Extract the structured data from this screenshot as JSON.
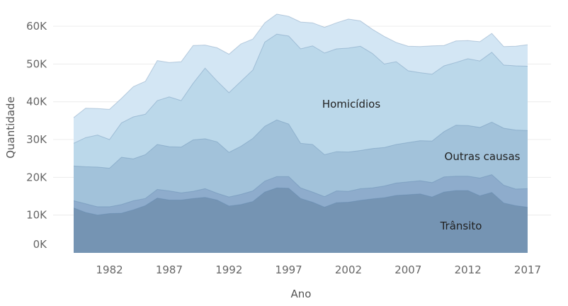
{
  "chart_data": {
    "type": "area",
    "stacked": false,
    "xlabel": "Ano",
    "ylabel": "Quantidade",
    "x_ticks": [
      "1982",
      "1987",
      "1992",
      "1997",
      "2002",
      "2007",
      "2012",
      "2017"
    ],
    "y_ticks": [
      "0K",
      "10K",
      "20K",
      "30K",
      "40K",
      "50K",
      "60K"
    ],
    "xlim": [
      1979,
      2017
    ],
    "ylim": [
      0,
      60000
    ],
    "grid": true,
    "x": [
      1979,
      1980,
      1981,
      1982,
      1983,
      1984,
      1985,
      1986,
      1987,
      1988,
      1989,
      1990,
      1991,
      1992,
      1993,
      1994,
      1995,
      1996,
      1997,
      1998,
      1999,
      2000,
      2001,
      2002,
      2003,
      2004,
      2005,
      2006,
      2007,
      2008,
      2009,
      2010,
      2011,
      2012,
      2013,
      2014,
      2015,
      2016,
      2017
    ],
    "series": [
      {
        "color": "#d3e6f4",
        "values": [
          35800,
          38300,
          38200,
          38000,
          40900,
          44000,
          45400,
          50900,
          50400,
          50600,
          54900,
          55000,
          54300,
          52600,
          55300,
          56600,
          60900,
          63200,
          62600,
          61100,
          60900,
          59700,
          60900,
          61900,
          61400,
          59200,
          57300,
          55700,
          54700,
          54600,
          54800,
          54900,
          56100,
          56200,
          55900,
          58100,
          54600,
          54700,
          55100
        ]
      },
      {
        "color": "#bbd8ea",
        "label": "Homicídios",
        "values": [
          29000,
          30500,
          31200,
          30000,
          34400,
          36000,
          36700,
          40300,
          41300,
          40300,
          44900,
          48900,
          45500,
          42400,
          45400,
          48400,
          55800,
          57900,
          57400,
          54000,
          54800,
          52900,
          54000,
          54200,
          54700,
          52800,
          50000,
          50600,
          48200,
          47700,
          47300,
          49500,
          50400,
          51400,
          50800,
          53100,
          49700,
          49500,
          49400
        ]
      },
      {
        "color": "#a2c2da",
        "label": "Outras causas",
        "values": [
          23000,
          22800,
          22700,
          22400,
          25300,
          24900,
          26000,
          28700,
          28100,
          28000,
          29900,
          30200,
          29400,
          26600,
          28200,
          30300,
          33500,
          35200,
          34100,
          29000,
          28700,
          26000,
          26800,
          26700,
          27100,
          27600,
          27900,
          28700,
          29200,
          29700,
          29600,
          32100,
          33800,
          33700,
          33200,
          34600,
          33000,
          32500,
          32400
        ]
      },
      {
        "color": "#8eaccc",
        "values": [
          13800,
          13000,
          12200,
          12200,
          12800,
          13800,
          14400,
          16800,
          16400,
          15900,
          16300,
          17000,
          15800,
          14800,
          15500,
          16400,
          19000,
          20200,
          20200,
          17200,
          16100,
          14900,
          16400,
          16300,
          17000,
          17200,
          17700,
          18500,
          18800,
          19100,
          18600,
          20100,
          20300,
          20300,
          19800,
          20700,
          17900,
          16900,
          17000
        ]
      },
      {
        "color": "#7594b3",
        "label": "Trânsito",
        "values": [
          11900,
          10700,
          10000,
          10400,
          10500,
          11400,
          12500,
          14500,
          14000,
          14000,
          14400,
          14700,
          14000,
          12400,
          12800,
          13600,
          16100,
          17200,
          17100,
          14400,
          13400,
          12100,
          13300,
          13400,
          13900,
          14300,
          14600,
          15200,
          15400,
          15600,
          14800,
          16100,
          16500,
          16500,
          15100,
          16000,
          13200,
          12500,
          12100
        ]
      }
    ]
  }
}
